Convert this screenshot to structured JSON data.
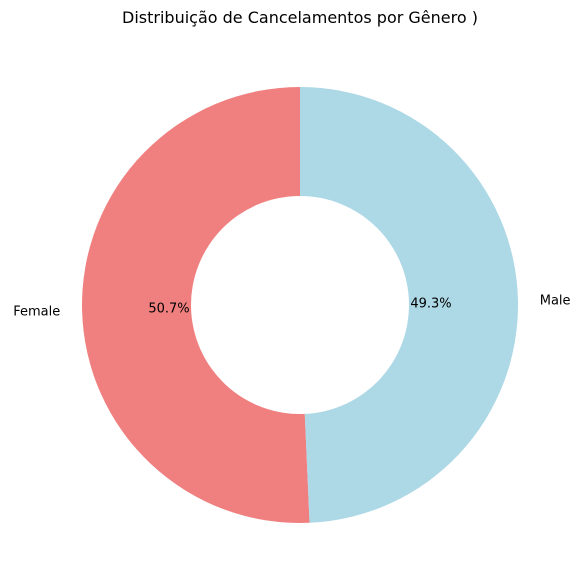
{
  "chart_data": {
    "type": "pie",
    "title": "Distribuição de Cancelamentos por Gênero )",
    "donut": true,
    "start_angle_deg": 90,
    "direction": "counterclockwise",
    "slices": [
      {
        "label": "Female",
        "value": 50.7,
        "pct_label": "50.7%",
        "color": "#f08080"
      },
      {
        "label": "Male",
        "value": 49.3,
        "pct_label": "49.3%",
        "color": "#add8e6"
      }
    ]
  }
}
